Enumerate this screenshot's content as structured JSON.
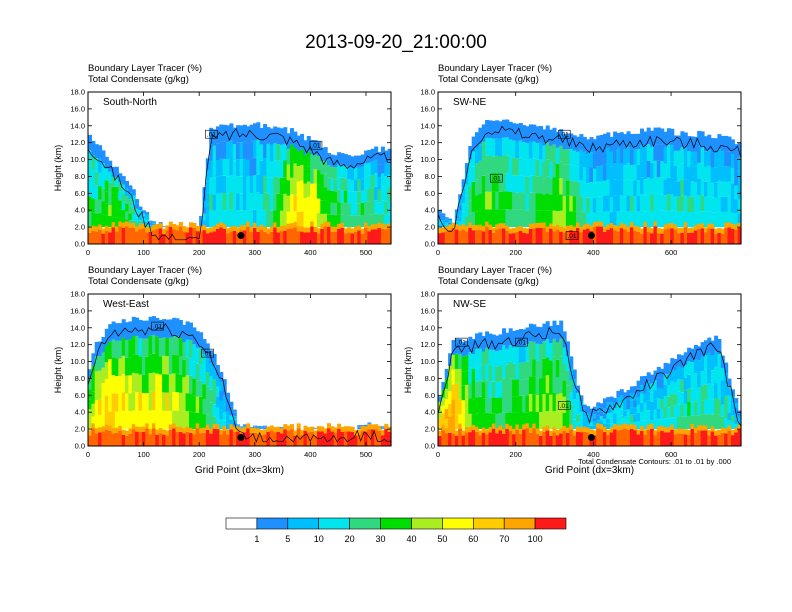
{
  "title": "2013-09-20_21:00:00",
  "panel_left_label_1": "Boundary Layer Tracer   (%)",
  "panel_left_label_2": "Total Condensate   (g/kg)",
  "ylabel": "Height (km)",
  "xlabel": "Grid Point (dx=3km)",
  "contour_note": "Total Condensate Contours: .01 to .01 by .000",
  "contour_label": ".01",
  "colors": [
    "#ffffff",
    "#1e90ff",
    "#00bfff",
    "#00e5ee",
    "#30d980",
    "#00dd00",
    "#aaee22",
    "#ffff00",
    "#ffcc00",
    "#ffa500",
    "#ff6600",
    "#ff1a1a",
    "#ee0000"
  ],
  "chart_data": [
    {
      "type": "heatmap",
      "panel_name": "South-North",
      "title": "Boundary Layer Tracer   (%)",
      "subtitle": "Total Condensate   (g/kg)",
      "xlabel": "",
      "ylabel": "Height (km)",
      "xlim": [
        0,
        545
      ],
      "ylim": [
        0,
        18
      ],
      "xticks": [
        0,
        100,
        200,
        300,
        400,
        500
      ],
      "yticks": [
        "0.0",
        "2.0",
        "4.0",
        "6.0",
        "8.0",
        "10.0",
        "12.0",
        "14.0",
        "16.0",
        "18.0"
      ],
      "contour_labels": [
        {
          "x": 222,
          "y": 13.0
        },
        {
          "x": 410,
          "y": 11.7
        }
      ],
      "marker": {
        "x": 275,
        "y": 1.0
      },
      "profile": {
        "x": [
          0,
          20,
          45,
          70,
          95,
          120,
          160,
          200,
          220,
          250,
          275,
          300,
          340,
          360,
          380,
          395,
          410,
          430,
          460,
          500,
          545
        ],
        "top": [
          12.8,
          11.5,
          9.5,
          7.5,
          4.5,
          2.5,
          1.6,
          1.6,
          13.5,
          14.0,
          14.2,
          14.2,
          14.0,
          13.5,
          13.0,
          12.5,
          12.0,
          11.0,
          10.5,
          11.0,
          11.5
        ],
        "intens": [
          0.45,
          0.5,
          0.55,
          0.5,
          0.35,
          0.2,
          0.1,
          0.1,
          0.3,
          0.35,
          0.3,
          0.25,
          0.5,
          0.7,
          0.8,
          0.75,
          0.7,
          0.55,
          0.45,
          0.4,
          0.35
        ]
      }
    },
    {
      "type": "heatmap",
      "panel_name": "SW-NE",
      "title": "Boundary Layer Tracer   (%)",
      "subtitle": "Total Condensate   (g/kg)",
      "xlabel": "",
      "ylabel": "Height (km)",
      "xlim": [
        0,
        780
      ],
      "ylim": [
        0,
        18
      ],
      "xticks": [
        0,
        200,
        400,
        600
      ],
      "yticks": [
        "0.0",
        "2.0",
        "4.0",
        "6.0",
        "8.0",
        "10.0",
        "12.0",
        "14.0",
        "16.0",
        "18.0"
      ],
      "contour_labels": [
        {
          "x": 150,
          "y": 7.8
        },
        {
          "x": 325,
          "y": 13.0
        },
        {
          "x": 345,
          "y": 1.0
        }
      ],
      "marker": {
        "x": 395,
        "y": 1.0
      },
      "profile": {
        "x": [
          0,
          40,
          90,
          130,
          180,
          230,
          280,
          320,
          360,
          400,
          450,
          500,
          560,
          620,
          680,
          740,
          780
        ],
        "top": [
          4.5,
          2.5,
          13.0,
          14.8,
          14.5,
          14.0,
          13.8,
          13.5,
          12.8,
          12.5,
          13.0,
          13.2,
          13.5,
          13.2,
          13.0,
          12.5,
          12.0
        ],
        "intens": [
          0.25,
          0.2,
          0.45,
          0.55,
          0.45,
          0.4,
          0.55,
          0.6,
          0.45,
          0.3,
          0.25,
          0.3,
          0.3,
          0.35,
          0.35,
          0.3,
          0.25
        ]
      }
    },
    {
      "type": "heatmap",
      "panel_name": "West-East",
      "title": "Boundary Layer Tracer   (%)",
      "subtitle": "Total Condensate   (g/kg)",
      "xlabel": "Grid Point (dx=3km)",
      "ylabel": "Height (km)",
      "xlim": [
        0,
        545
      ],
      "ylim": [
        0,
        18
      ],
      "xticks": [
        0,
        100,
        200,
        300,
        400,
        500
      ],
      "yticks": [
        "0.0",
        "2.0",
        "4.0",
        "6.0",
        "8.0",
        "10.0",
        "12.0",
        "14.0",
        "16.0",
        "18.0"
      ],
      "contour_labels": [
        {
          "x": 125,
          "y": 14.2
        },
        {
          "x": 215,
          "y": 11.0
        }
      ],
      "marker": {
        "x": 275,
        "y": 1.0
      },
      "profile": {
        "x": [
          0,
          15,
          40,
          70,
          100,
          130,
          160,
          190,
          215,
          240,
          270,
          320,
          380,
          450,
          500,
          545
        ],
        "top": [
          8.5,
          12.0,
          14.5,
          15.0,
          15.0,
          15.2,
          14.8,
          14.2,
          12.5,
          9.0,
          2.5,
          2.0,
          2.0,
          1.8,
          2.5,
          2.0
        ],
        "intens": [
          0.6,
          0.75,
          0.8,
          0.75,
          0.7,
          0.75,
          0.65,
          0.55,
          0.45,
          0.3,
          0.15,
          0.1,
          0.1,
          0.1,
          0.15,
          0.1
        ]
      }
    },
    {
      "type": "heatmap",
      "panel_name": "NW-SE",
      "title": "",
      "subtitle": "",
      "xlabel": "Grid Point (dx=3km)",
      "ylabel": "Height (km)",
      "xlim": [
        0,
        780
      ],
      "ylim": [
        0,
        18
      ],
      "xticks": [
        0,
        200,
        400,
        600
      ],
      "yticks": [
        "0.0",
        "2.0",
        "4.0",
        "6.0",
        "8.0",
        "10.0",
        "12.0",
        "14.0",
        "16.0",
        "18.0"
      ],
      "contour_labels": [
        {
          "x": 60,
          "y": 12.3
        },
        {
          "x": 215,
          "y": 12.3
        },
        {
          "x": 325,
          "y": 4.8
        }
      ],
      "marker": {
        "x": 395,
        "y": 1.0
      },
      "profile": {
        "x": [
          0,
          40,
          80,
          120,
          160,
          200,
          240,
          280,
          320,
          350,
          380,
          430,
          480,
          540,
          600,
          660,
          720,
          780
        ],
        "top": [
          5.0,
          12.5,
          12.8,
          13.2,
          13.5,
          13.8,
          14.2,
          14.5,
          14.8,
          9.0,
          4.5,
          5.5,
          6.5,
          8.5,
          10.0,
          12.0,
          13.0,
          3.5
        ],
        "intens": [
          0.85,
          0.9,
          0.6,
          0.5,
          0.45,
          0.5,
          0.55,
          0.6,
          0.6,
          0.35,
          0.25,
          0.25,
          0.3,
          0.3,
          0.35,
          0.4,
          0.4,
          0.25
        ]
      }
    }
  ],
  "colorbar": {
    "labels": [
      "1",
      "5",
      "10",
      "20",
      "30",
      "40",
      "50",
      "60",
      "70",
      "100"
    ]
  }
}
